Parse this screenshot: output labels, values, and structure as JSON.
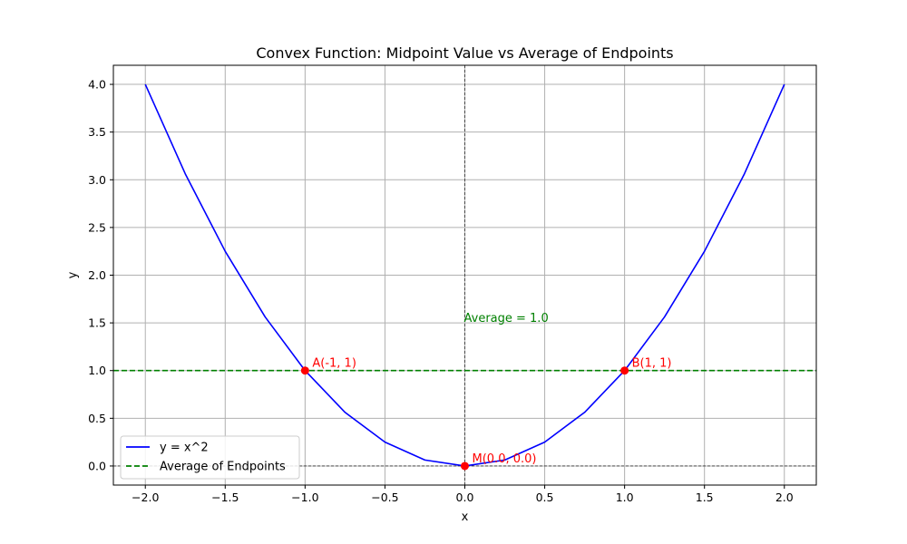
{
  "chart_data": {
    "type": "line",
    "title": "Convex Function: Midpoint Value vs Average of Endpoints",
    "xlabel": "x",
    "ylabel": "y",
    "xlim": [
      -2.2,
      2.2
    ],
    "ylim": [
      -0.2,
      4.2
    ],
    "x_ticks": [
      -2.0,
      -1.5,
      -1.0,
      -0.5,
      0.0,
      0.5,
      1.0,
      1.5,
      2.0
    ],
    "x_tick_labels": [
      "−2.0",
      "−1.5",
      "−1.0",
      "−0.5",
      "0.0",
      "0.5",
      "1.0",
      "1.5",
      "2.0"
    ],
    "y_ticks": [
      0.0,
      0.5,
      1.0,
      1.5,
      2.0,
      2.5,
      3.0,
      3.5,
      4.0
    ],
    "y_tick_labels": [
      "0.0",
      "0.5",
      "1.0",
      "1.5",
      "2.0",
      "2.5",
      "3.0",
      "3.5",
      "4.0"
    ],
    "grid": true,
    "legend_placement": "lower-left",
    "series": [
      {
        "name": "y = x^2",
        "style": "solid",
        "color": "#0000ff",
        "x": [
          -2.0,
          -1.75,
          -1.5,
          -1.25,
          -1.0,
          -0.75,
          -0.5,
          -0.25,
          0.0,
          0.25,
          0.5,
          0.75,
          1.0,
          1.25,
          1.5,
          1.75,
          2.0
        ],
        "y": [
          4.0,
          3.0625,
          2.25,
          1.5625,
          1.0,
          0.5625,
          0.25,
          0.0625,
          0.0,
          0.0625,
          0.25,
          0.5625,
          1.0,
          1.5625,
          2.25,
          3.0625,
          4.0
        ]
      },
      {
        "name": "Average of Endpoints",
        "style": "dashed",
        "color": "#008000",
        "y_constant": 1.0
      }
    ],
    "points": [
      {
        "x": -1,
        "y": 1,
        "label": "A(-1, 1)"
      },
      {
        "x": 1,
        "y": 1,
        "label": "B(1, 1)"
      },
      {
        "x": 0,
        "y": 0,
        "label": "M(0.0, 0.0)"
      }
    ],
    "point_color": "#ff0000",
    "annotations": [
      {
        "x": 0,
        "y": 1.5,
        "text": "Average = 1.0",
        "color": "#008000"
      }
    ],
    "reference_lines": {
      "x_zero": true,
      "y_zero": true
    }
  }
}
